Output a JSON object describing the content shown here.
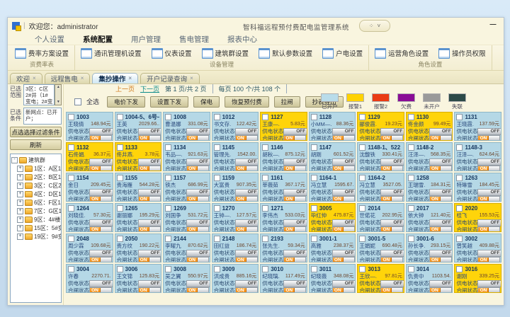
{
  "window": {
    "welcome": "欢迎您：administrator",
    "system_title": "智科福远程预付费配电监管理系统",
    "quick_icons": {
      "grid": "⁘",
      "chevron": "˅"
    },
    "minimize": "—"
  },
  "menu": {
    "items": [
      {
        "label": "个人设置",
        "active": false
      },
      {
        "label": "系统配置",
        "active": true
      },
      {
        "label": "用户管理",
        "active": false
      },
      {
        "label": "售电管理",
        "active": false
      },
      {
        "label": "报表中心",
        "active": false
      }
    ]
  },
  "ribbon": {
    "groups": [
      {
        "label": "资费率表",
        "buttons": [
          "费率方案设置"
        ]
      },
      {
        "label": "设备管理",
        "buttons": [
          "通讯管理机设置",
          "仪表设置",
          "建筑群设置",
          "默认参数设置",
          "户电设置"
        ]
      },
      {
        "label": "角色设置",
        "buttons": [
          "运营角色设置",
          "操作员权限"
        ]
      }
    ]
  },
  "tabs": [
    {
      "label": "欢迎",
      "active": false
    },
    {
      "label": "远程售电",
      "active": false
    },
    {
      "label": "集抄操作",
      "active": true
    },
    {
      "label": "开户记录查询",
      "active": false
    }
  ],
  "sidebar": {
    "range_label": "已选范围",
    "range_value": "3区：C区2#井（1#变电；2#变电；/C1#…",
    "cond_label": "已选条件",
    "cond_value": "新网点：已开户；",
    "filter_button": "点选选择过滤条件",
    "refresh_button": "刷新",
    "tree": {
      "root": "建筑群",
      "nodes": [
        "1区：A区1#井",
        "2区：B区1#井",
        "3区：C区2#井",
        "4区：D区1#井",
        "6区：F区1#井",
        "7区：G区1#井",
        "9区：4#楼电井",
        "15区：5#变电",
        "19区：9#变电站"
      ]
    }
  },
  "pagination": {
    "prev": "上一页",
    "next": "下一页",
    "page_info": "第 1 页/共 2 页",
    "per_info": "每页 100 个/共 108 个"
  },
  "toolbar": {
    "select_all": "全选",
    "buttons": [
      "电价下发",
      "设置下发",
      "保电",
      "恢复预付费",
      "拉闸",
      "抄表导出"
    ]
  },
  "legend": {
    "items": [
      {
        "label": "已开户",
        "color": "#b9dcea"
      },
      {
        "label": "报警1",
        "color": "#ffd200"
      },
      {
        "label": "报警2",
        "color": "#ea3b14"
      },
      {
        "label": "欠费",
        "color": "#8a0d96"
      },
      {
        "label": "未开户",
        "color": "#9a9a9a"
      },
      {
        "label": "失联",
        "color": "#2c4a48"
      }
    ]
  },
  "card_labels": {
    "supply": "供电状态",
    "switch": "合闸状态",
    "on": "ON",
    "off": "OFF"
  },
  "colors": {
    "card_open": "#b5d8e6",
    "card_alarm1": "#ffd40a",
    "on_button": "#f07f00"
  },
  "cards": [
    {
      "id": "1003",
      "name": "王晓倩",
      "balance": "148.94元",
      "type": "open"
    },
    {
      "id": "1004-5、6号—",
      "name": "王英",
      "balance": "2029.66..",
      "type": "open"
    },
    {
      "id": "1008",
      "name": "曹温娜",
      "balance": "331.08元",
      "type": "open"
    },
    {
      "id": "1012",
      "name": "书文存.",
      "balance": "122.42元",
      "type": "open"
    },
    {
      "id": "1127",
      "name": "王康—.",
      "balance": "5.83元",
      "type": "alarm1"
    },
    {
      "id": "1128",
      "name": "小MM—.",
      "balance": "88.36元",
      "type": "open"
    },
    {
      "id": "1129",
      "name": "郦俊霞.",
      "balance": "19.23元",
      "type": "alarm1"
    },
    {
      "id": "1130",
      "name": "佟金颜",
      "balance": "99.49元",
      "type": "alarm1"
    },
    {
      "id": "1131",
      "name": "王晓霞.",
      "balance": "137.59元",
      "type": "open"
    },
    {
      "id": "1132",
      "name": "石佟娟.",
      "balance": "36.37元",
      "type": "alarm1"
    },
    {
      "id": "1133",
      "name": "佟井燕.",
      "balance": "3.78元",
      "type": "alarm1"
    },
    {
      "id": "1134",
      "name": "韦品—.",
      "balance": "921.63元",
      "type": "open"
    },
    {
      "id": "1145",
      "name": "管理先.",
      "balance": "1542.00.",
      "type": "open"
    },
    {
      "id": "1146",
      "name": "胡秋—.",
      "balance": "875.12元",
      "type": "open"
    },
    {
      "id": "1147",
      "name": "胡刚",
      "balance": "601.52元",
      "type": "open"
    },
    {
      "id": "1148-1、522",
      "name": "沈馥铁",
      "balance": "330.41元",
      "type": "open"
    },
    {
      "id": "1148-2",
      "name": "汪泽—.",
      "balance": "568.35元",
      "type": "open"
    },
    {
      "id": "1148-3",
      "name": "汪泽—.",
      "balance": "624.64元",
      "type": "open"
    },
    {
      "id": "1154",
      "name": "金日",
      "balance": "209.45元",
      "type": "open"
    },
    {
      "id": "1155",
      "name": "贵海雁",
      "balance": "544.28元",
      "type": "open"
    },
    {
      "id": "1157",
      "name": "铁杰",
      "balance": "686.99元",
      "type": "open"
    },
    {
      "id": "1159",
      "name": "大富贵",
      "balance": "907.35元",
      "type": "open"
    },
    {
      "id": "1161",
      "name": "莘薇茹",
      "balance": "367.17元",
      "type": "open"
    },
    {
      "id": "1164-1",
      "name": "冯立慧",
      "balance": "1595.67.",
      "type": "open"
    },
    {
      "id": "1164-2",
      "name": "冯立慧",
      "balance": "3527.05.",
      "type": "open"
    },
    {
      "id": "1258",
      "name": "王瑞雪.",
      "balance": "184.31元",
      "type": "open"
    },
    {
      "id": "1263",
      "name": "特琳雪",
      "balance": "184.45元",
      "type": "open"
    },
    {
      "id": "1264",
      "name": "刘晓佳.",
      "balance": "57.30元",
      "type": "open"
    },
    {
      "id": "1265",
      "name": "谢丽娜",
      "balance": "195.29元",
      "type": "open"
    },
    {
      "id": "1269",
      "name": "刘国争",
      "balance": "531.72元",
      "type": "open"
    },
    {
      "id": "1270",
      "name": "王钟—.",
      "balance": "127.57元",
      "type": "open"
    },
    {
      "id": "1271",
      "name": "李伟杰",
      "balance": "533.03元",
      "type": "open"
    },
    {
      "id": "3005",
      "name": "毕红仲",
      "balance": "475.87元",
      "type": "alarm1"
    },
    {
      "id": "2014",
      "name": "世偌花",
      "balance": "202.95元",
      "type": "open"
    },
    {
      "id": "2017",
      "name": "依大钟",
      "balance": "121.40元",
      "type": "open"
    },
    {
      "id": "2020",
      "name": "桂飞",
      "balance": "155.53元",
      "type": "alarm1"
    },
    {
      "id": "2048",
      "name": "周少霖",
      "balance": "109.68元",
      "type": "open"
    },
    {
      "id": "2050",
      "name": "贵方纹",
      "balance": "190.22元",
      "type": "open"
    },
    {
      "id": "2144",
      "name": "李曜九",
      "balance": "870.62元",
      "type": "open"
    },
    {
      "id": "2148",
      "name": "田红益",
      "balance": "186.74元",
      "type": "open"
    },
    {
      "id": "2193",
      "name": "张先生.",
      "balance": "59.34元",
      "type": "open"
    },
    {
      "id": "3001-1",
      "name": "高雅",
      "balance": "238.37元",
      "type": "open"
    },
    {
      "id": "3001-5",
      "name": "王娟妮",
      "balance": "690.48元",
      "type": "open"
    },
    {
      "id": "3001-6",
      "name": "孙长争.",
      "balance": "293.15元",
      "type": "open"
    },
    {
      "id": "3002",
      "name": "曾笑越",
      "balance": "409.88元",
      "type": "open"
    },
    {
      "id": "3004",
      "name": "许春",
      "balance": "2270.71.",
      "type": "open"
    },
    {
      "id": "3006",
      "name": "王文锦",
      "balance": "125.83元",
      "type": "open"
    },
    {
      "id": "3008",
      "name": "吴之翼",
      "balance": "550.97元",
      "type": "open"
    },
    {
      "id": "3009",
      "name": "洪成贵",
      "balance": "885.16元",
      "type": "open"
    },
    {
      "id": "3010",
      "name": "纪晓璃.",
      "balance": "117.49元",
      "type": "open"
    },
    {
      "id": "3011",
      "name": "纪晓薇",
      "balance": "348.08元",
      "type": "open"
    },
    {
      "id": "3013",
      "name": "王欣—.",
      "balance": "97.81元",
      "type": "alarm1"
    },
    {
      "id": "3014",
      "name": "仇贵中",
      "balance": "1103.54.",
      "type": "open"
    },
    {
      "id": "3016",
      "name": "谢刚",
      "balance": "339.25元",
      "type": "alarm1"
    }
  ]
}
